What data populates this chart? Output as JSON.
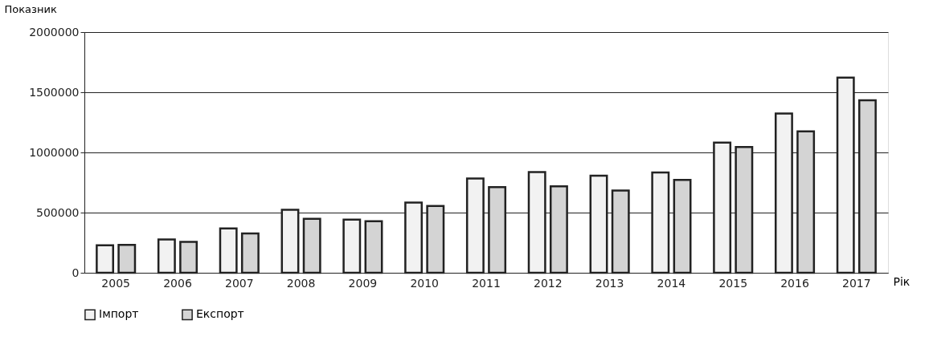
{
  "chart_data": {
    "type": "bar",
    "xlabel": "Рік",
    "ylabel": "Показник",
    "categories": [
      "2005",
      "2006",
      "2007",
      "2008",
      "2009",
      "2010",
      "2011",
      "2012",
      "2013",
      "2014",
      "2015",
      "2016",
      "2017"
    ],
    "series": [
      {
        "name": "Імпорт",
        "color": "#f2f2f2",
        "values": [
          228000,
          276000,
          369000,
          524000,
          442000,
          583000,
          783000,
          836000,
          806000,
          834000,
          1082000,
          1324000,
          1621000
        ]
      },
      {
        "name": "Експорт",
        "color": "#d4d4d4",
        "values": [
          232000,
          256000,
          327000,
          449000,
          429000,
          555000,
          711000,
          718000,
          683000,
          771000,
          1045000,
          1175000,
          1433000
        ]
      }
    ],
    "ylim": [
      0,
      2000000
    ],
    "yticks": [
      0,
      500000,
      1000000,
      1500000,
      2000000
    ],
    "grid": "y",
    "legend": "bottom"
  }
}
